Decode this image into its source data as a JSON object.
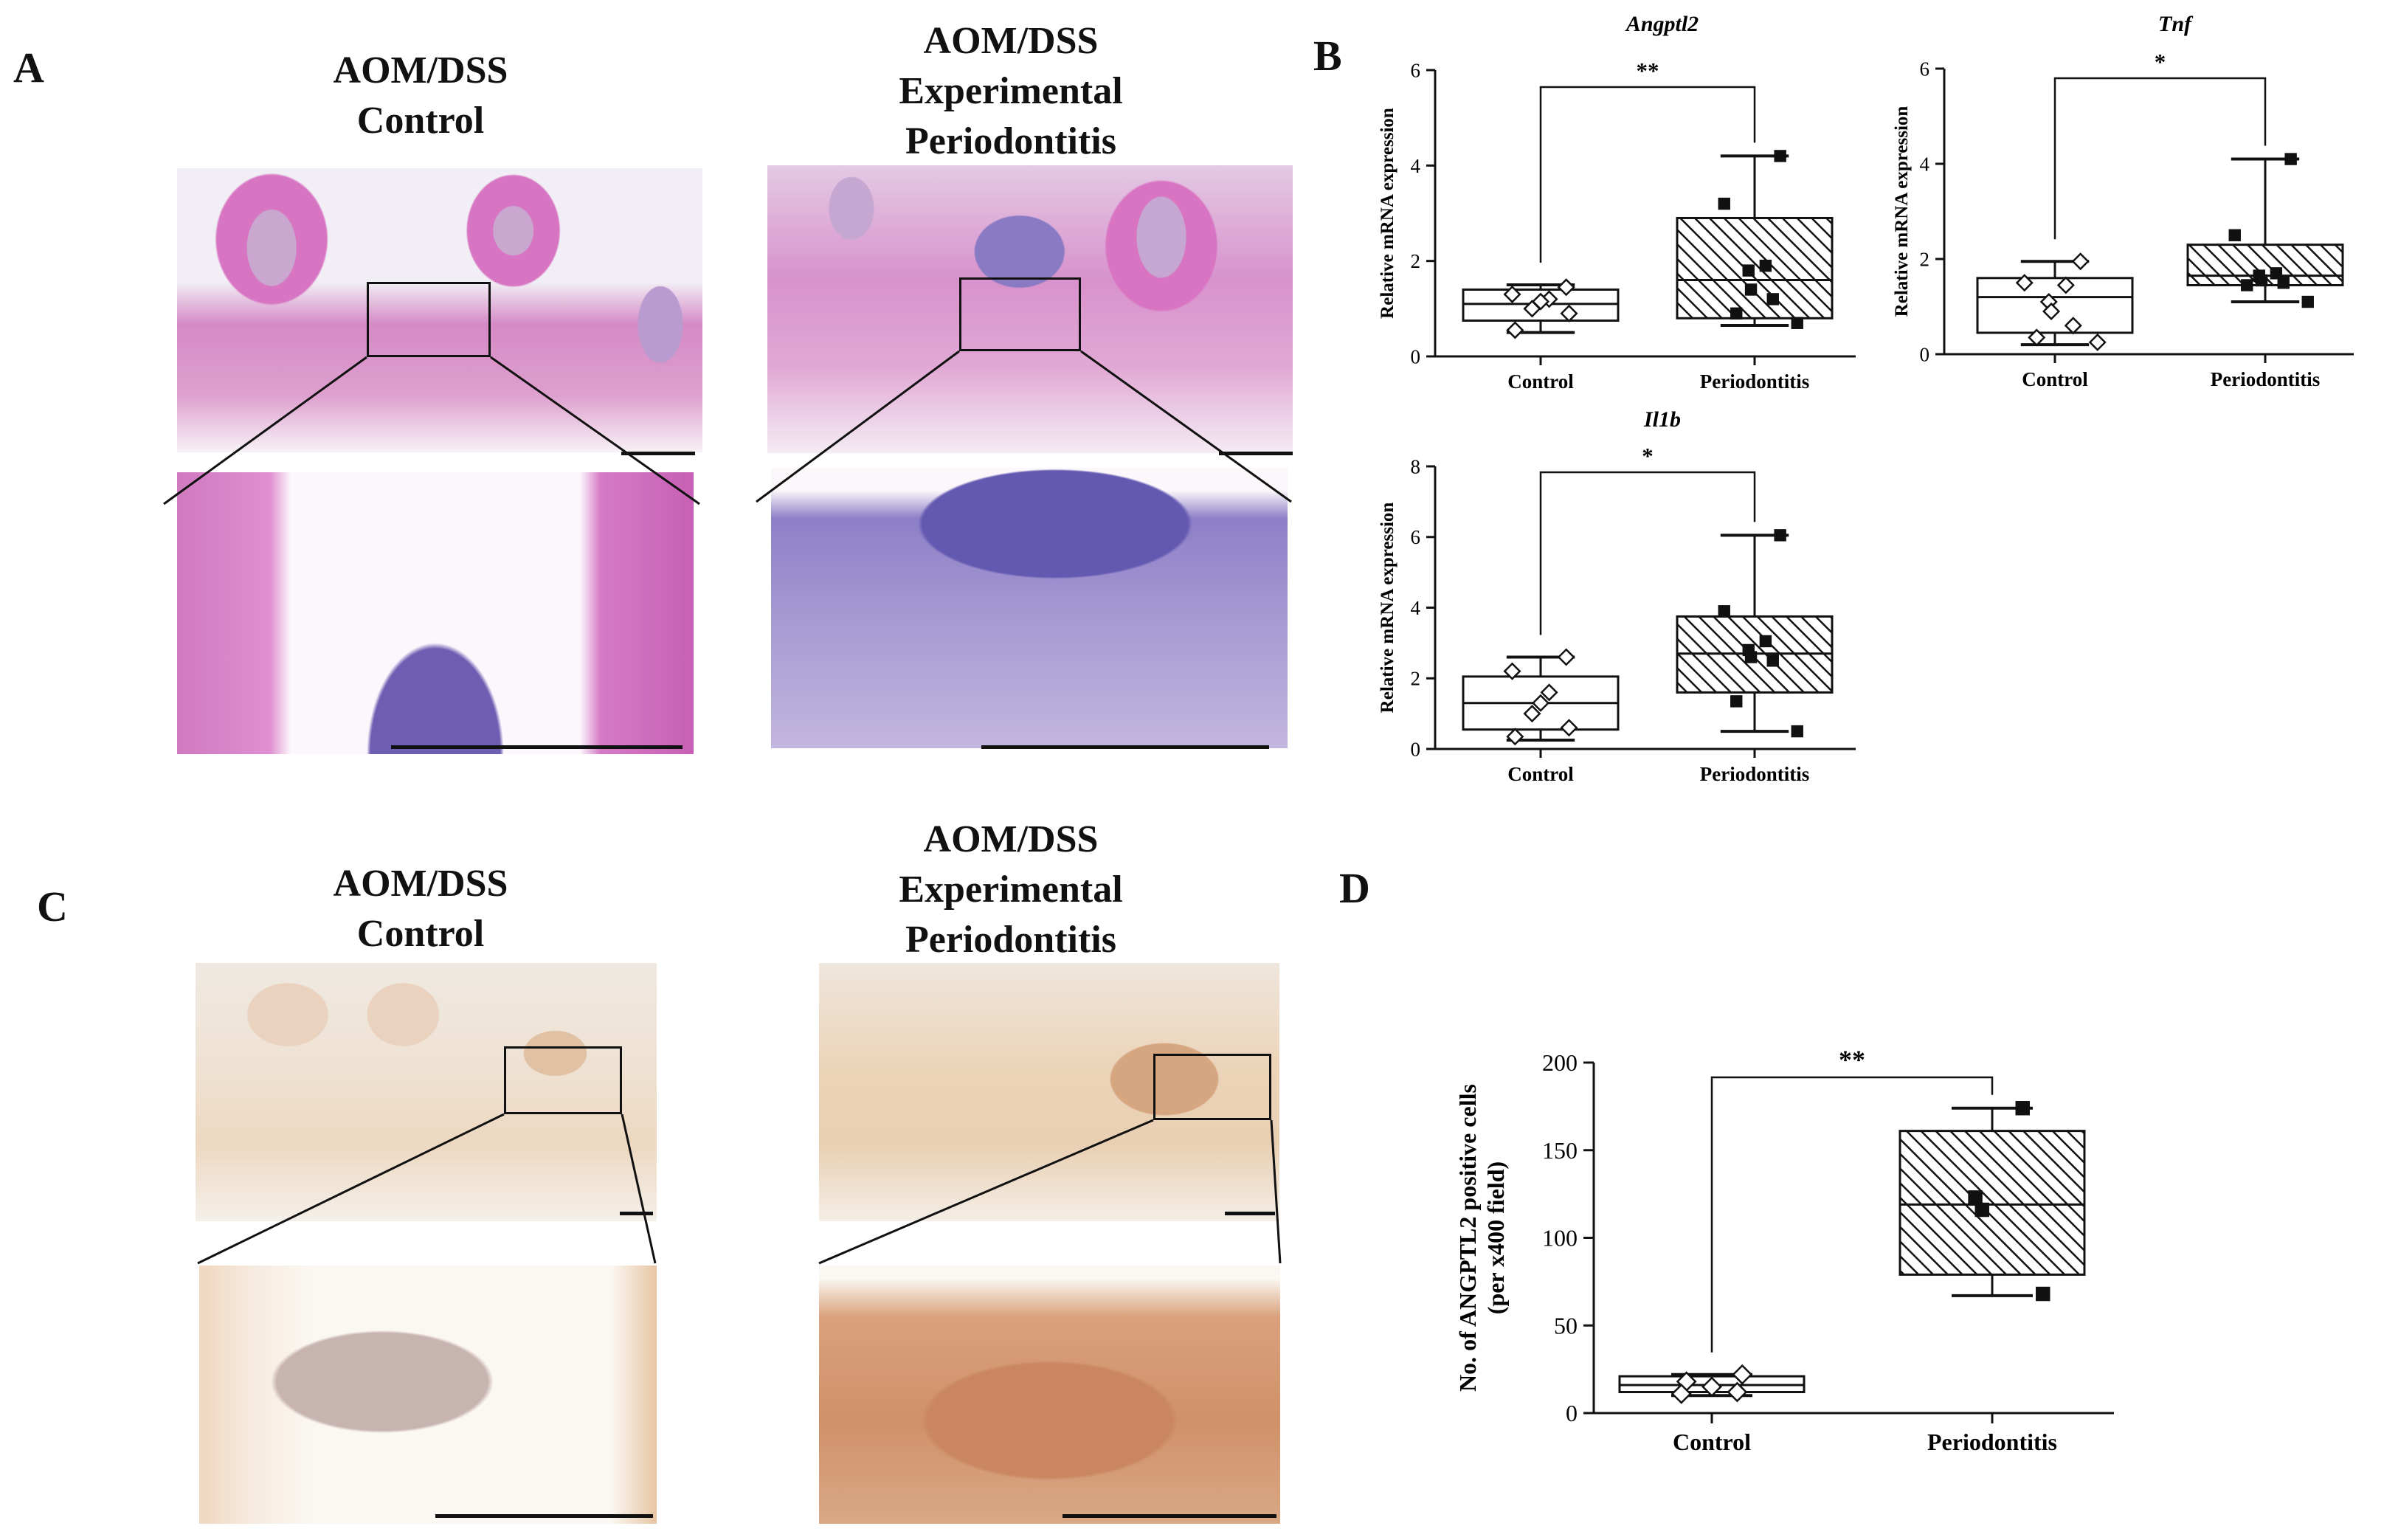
{
  "panels": {
    "A": {
      "letter": "A",
      "control_header": [
        "AOM/DSS",
        "Control"
      ],
      "ep_header": [
        "AOM/DSS",
        "Experimental",
        "Periodontitis"
      ]
    },
    "B": {
      "letter": "B"
    },
    "C": {
      "letter": "C",
      "control_header": [
        "AOM/DSS",
        "Control"
      ],
      "ep_header": [
        "AOM/DSS",
        "Experimental",
        "Periodontitis"
      ]
    },
    "D": {
      "letter": "D"
    }
  },
  "chart_data": [
    {
      "id": "angptl2",
      "type": "box",
      "title": "Angptl2",
      "ylabel": "Relative mRNA expression",
      "ylim": [
        0,
        6
      ],
      "yticks": [
        0,
        2,
        4,
        6
      ],
      "categories": [
        "Control",
        "Periodontitis"
      ],
      "significance": "**",
      "boxes": [
        {
          "min": 0.5,
          "q1": 0.75,
          "median": 1.1,
          "q3": 1.4,
          "max": 1.5,
          "points": [
            1.45,
            1.3,
            1.2,
            1.15,
            1.0,
            0.9,
            0.55
          ],
          "marker": "diamond"
        },
        {
          "min": 0.65,
          "q1": 0.8,
          "median": 1.6,
          "q3": 2.9,
          "max": 4.2,
          "points": [
            4.2,
            3.2,
            1.9,
            1.8,
            1.4,
            1.2,
            0.9,
            0.7
          ],
          "marker": "square"
        }
      ]
    },
    {
      "id": "tnf",
      "type": "box",
      "title": "Tnf",
      "ylabel": "Relative mRNA expression",
      "ylim": [
        0,
        6
      ],
      "yticks": [
        0,
        2,
        4,
        6
      ],
      "categories": [
        "Control",
        "Periodontitis"
      ],
      "significance": "*",
      "boxes": [
        {
          "min": 0.2,
          "q1": 0.45,
          "median": 1.2,
          "q3": 1.6,
          "max": 1.95,
          "points": [
            1.95,
            1.5,
            1.45,
            1.1,
            0.9,
            0.6,
            0.35,
            0.25
          ],
          "marker": "diamond"
        },
        {
          "min": 1.1,
          "q1": 1.45,
          "median": 1.65,
          "q3": 2.3,
          "max": 4.1,
          "points": [
            4.1,
            2.5,
            1.7,
            1.65,
            1.55,
            1.5,
            1.45,
            1.1
          ],
          "marker": "square"
        }
      ]
    },
    {
      "id": "il1b",
      "type": "box",
      "title": "Il1b",
      "ylabel": "Relative mRNA expression",
      "ylim": [
        0,
        8
      ],
      "yticks": [
        0,
        2,
        4,
        6,
        8
      ],
      "categories": [
        "Control",
        "Periodontitis"
      ],
      "significance": "*",
      "boxes": [
        {
          "min": 0.25,
          "q1": 0.55,
          "median": 1.3,
          "q3": 2.05,
          "max": 2.6,
          "points": [
            2.6,
            2.2,
            1.6,
            1.3,
            1.0,
            0.6,
            0.35
          ],
          "marker": "diamond"
        },
        {
          "min": 0.5,
          "q1": 1.6,
          "median": 2.7,
          "q3": 3.75,
          "max": 6.05,
          "points": [
            6.05,
            3.9,
            3.05,
            2.8,
            2.6,
            2.5,
            1.35,
            0.5
          ],
          "marker": "square"
        }
      ]
    },
    {
      "id": "angptl2-ihc",
      "type": "box",
      "title": "",
      "ylabel": "No. of ANGPTL2 positive cells",
      "ylabel2": "(per x400 field)",
      "ylim": [
        0,
        200
      ],
      "yticks": [
        0,
        50,
        100,
        150,
        200
      ],
      "categories": [
        "Control",
        "Periodontitis"
      ],
      "significance": "**",
      "boxes": [
        {
          "min": 10,
          "q1": 12,
          "median": 16,
          "q3": 21,
          "max": 22,
          "points": [
            22,
            18,
            15,
            12,
            11
          ],
          "marker": "diamond"
        },
        {
          "min": 67,
          "q1": 79,
          "median": 119,
          "q3": 161,
          "max": 174,
          "points": [
            174,
            123,
            116,
            68
          ],
          "marker": "square"
        }
      ]
    }
  ]
}
